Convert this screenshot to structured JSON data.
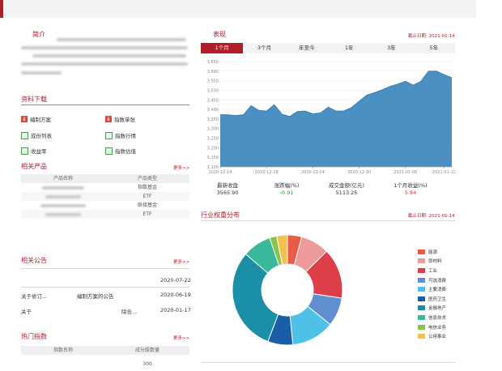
{
  "intro": {
    "title": "简介"
  },
  "downloads": {
    "title": "资料下载",
    "items": [
      {
        "label": "编制方案",
        "icon": "pdf-icon"
      },
      {
        "label": "指数单张",
        "icon": "pdf-icon"
      },
      {
        "label": "成份列表",
        "icon": "spreadsheet-icon"
      },
      {
        "label": "指数行情",
        "icon": "spreadsheet-icon"
      },
      {
        "label": "收益率",
        "icon": "spreadsheet-icon"
      },
      {
        "label": "指数估值",
        "icon": "spreadsheet-icon"
      }
    ]
  },
  "products": {
    "title": "相关产品",
    "more": "更多>>",
    "headers": [
      "产品名称",
      "产品类型"
    ],
    "rows": [
      {
        "type": "指数基金"
      },
      {
        "type": "ETF"
      },
      {
        "type": "联接基金"
      },
      {
        "type": "ETF"
      }
    ]
  },
  "announcements": {
    "title": "相关公告",
    "more": "更多>>",
    "rows": [
      {
        "a": "",
        "b": "",
        "date": "2020-07-22"
      },
      {
        "a": "关于修订...",
        "b": "编制方案的公告",
        "date": "2020-06-19"
      },
      {
        "a": "关于",
        "b": "除合...",
        "date": "2020-01-17"
      }
    ]
  },
  "hot": {
    "title": "热门指数",
    "more": "更多>>",
    "headers": [
      "指数名称",
      "成分股数量"
    ],
    "rows": [
      {
        "count": "300"
      }
    ]
  },
  "performance": {
    "title": "表现",
    "date": "截止日期: 2021-01-14",
    "tabs": [
      "1个月",
      "3个月",
      "年至今",
      "1年",
      "3年",
      "5年"
    ],
    "active_tab": "1个月",
    "stats": [
      {
        "label": "最新收盘",
        "value": "3565.90",
        "color": "#333333"
      },
      {
        "label": "涨跌幅(%)",
        "value": "-0.91",
        "color": "#2a9d3a"
      },
      {
        "label": "成交金额(亿元)",
        "value": "5113.25",
        "color": "#333333"
      },
      {
        "label": "1个月收益(%)",
        "value": "5.84",
        "color": "#d8343f"
      }
    ]
  },
  "industry": {
    "title": "行业权重分布",
    "date": "截止日期: 2021-01-14"
  },
  "chart_data": [
    {
      "type": "area",
      "x_ticks": [
        "2020-12-14",
        "2020-12-18",
        "2020-12-24",
        "2020-12-30",
        "2021-01-06",
        "2021-01-12"
      ],
      "ylim": [
        3100,
        3650
      ],
      "y_ticks": [
        3100,
        3150,
        3200,
        3250,
        3300,
        3350,
        3400,
        3450,
        3500,
        3550,
        3600,
        3650
      ],
      "y_tick_labels": [
        "3,100",
        "3,150",
        "3,200",
        "3,250",
        "3,300",
        "3,350",
        "3,400",
        "3,450",
        "3,500",
        "3,550",
        "3,600",
        "3,650"
      ],
      "values": [
        3373,
        3372,
        3368,
        3372,
        3420,
        3395,
        3392,
        3425,
        3375,
        3363,
        3390,
        3392,
        3377,
        3382,
        3412,
        3392,
        3392,
        3410,
        3443,
        3475,
        3488,
        3503,
        3520,
        3533,
        3547,
        3527,
        3547,
        3600,
        3600,
        3582,
        3566
      ],
      "color": "#4a90c2"
    },
    {
      "type": "pie",
      "categories": [
        "能源",
        "原材料",
        "工业",
        "可选消费",
        "主要消费",
        "医药卫生",
        "金融地产",
        "信息技术",
        "电信业务",
        "公用事业"
      ],
      "values": [
        4,
        8,
        14,
        8,
        12,
        7,
        29,
        8,
        2,
        3
      ],
      "colors": [
        "#e85b4a",
        "#ef9a9a",
        "#dc3f48",
        "#5f8fd1",
        "#4fc1e9",
        "#1a5ea8",
        "#1b8fa8",
        "#39b89a",
        "#8bc34a",
        "#f2c14e"
      ]
    }
  ]
}
